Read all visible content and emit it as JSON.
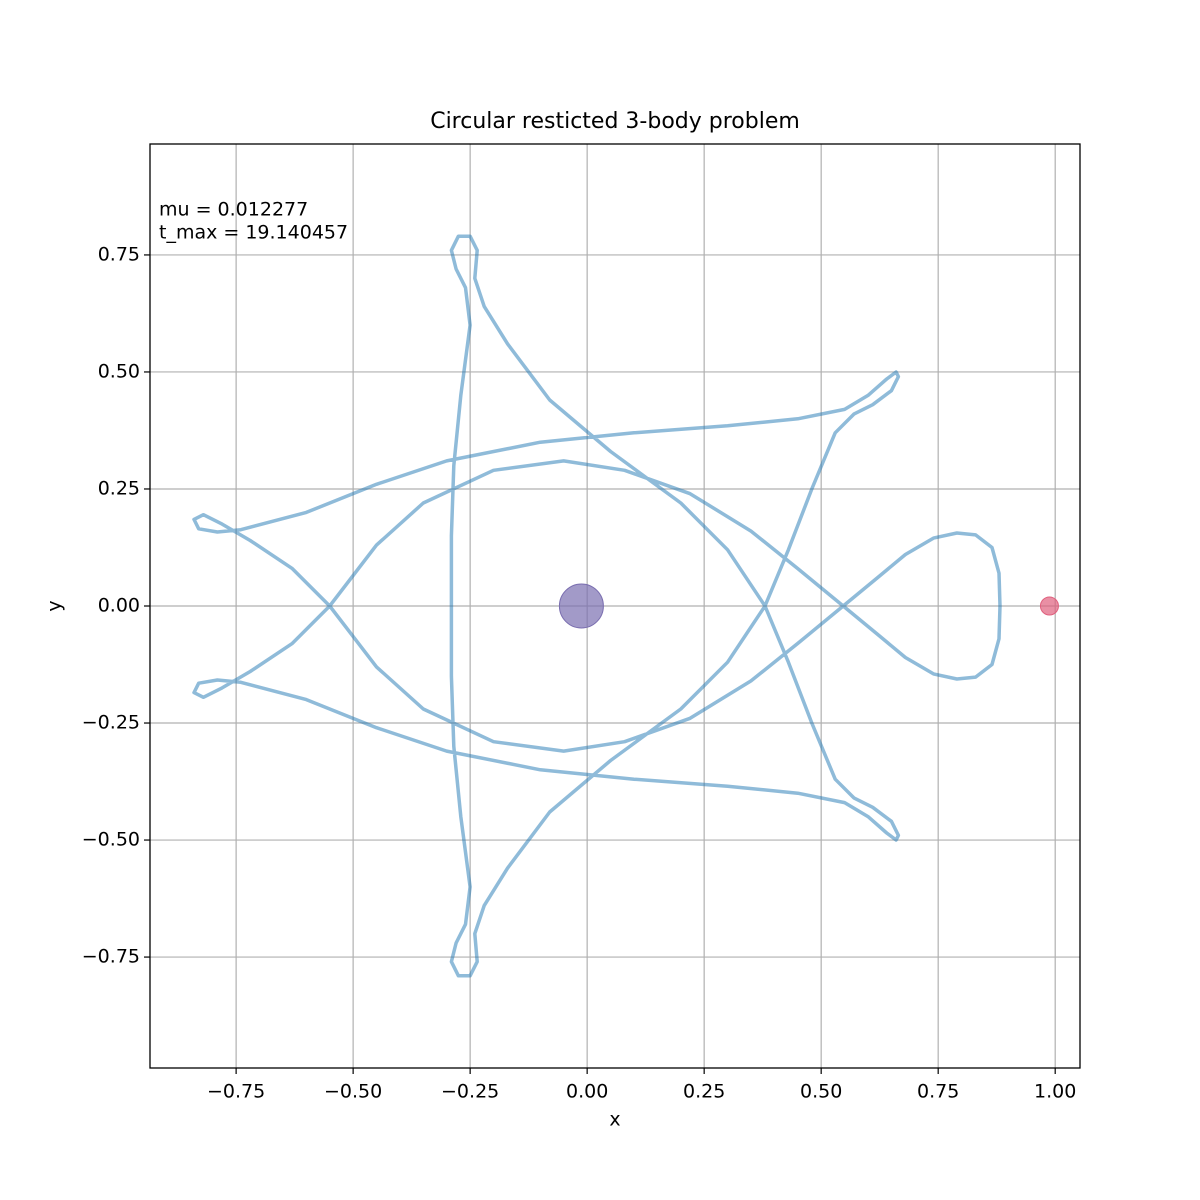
{
  "chart_data": {
    "type": "trajectory",
    "title": "Circular resticted 3-body problem",
    "x_label": "x",
    "y_label": "y",
    "annotations": [
      "mu = 0.012277",
      "t_max = 19.140457"
    ],
    "xlim": [
      -0.934,
      1.053
    ],
    "ylim": [
      -0.987,
      0.987
    ],
    "xticks": [
      {
        "value": -0.75,
        "label": "−0.75"
      },
      {
        "value": -0.5,
        "label": "−0.50"
      },
      {
        "value": -0.25,
        "label": "−0.25"
      },
      {
        "value": 0,
        "label": "0.00"
      },
      {
        "value": 0.25,
        "label": "0.25"
      },
      {
        "value": 0.5,
        "label": "0.50"
      },
      {
        "value": 0.75,
        "label": "0.75"
      },
      {
        "value": 1,
        "label": "1.00"
      }
    ],
    "yticks": [
      {
        "value": -0.75,
        "label": "−0.75"
      },
      {
        "value": -0.5,
        "label": "−0.50"
      },
      {
        "value": -0.25,
        "label": "−0.25"
      },
      {
        "value": 0,
        "label": "0.00"
      },
      {
        "value": 0.25,
        "label": "0.25"
      },
      {
        "value": 0.5,
        "label": "0.50"
      },
      {
        "value": 0.75,
        "label": "0.75"
      }
    ],
    "grid": true,
    "series": [
      {
        "color": "#1f77b4",
        "x": [
          0.882,
          0.88,
          0.865,
          0.83,
          0.79,
          0.74,
          0.68,
          0.62,
          0.547,
          0.45,
          0.35,
          0.22,
          0.08,
          -0.05,
          -0.2,
          -0.35,
          -0.45,
          -0.55,
          -0.63,
          -0.72,
          -0.78,
          -0.82,
          -0.84,
          -0.83,
          -0.79,
          -0.74,
          -0.6,
          -0.45,
          -0.3,
          -0.1,
          0.1,
          0.3,
          0.45,
          0.55,
          0.6,
          0.64,
          0.66,
          0.665,
          0.65,
          0.61,
          0.57,
          0.53,
          0.48,
          0.43,
          0.38,
          0.3,
          0.2,
          0.05,
          -0.08,
          -0.17,
          -0.22,
          -0.24,
          -0.235,
          -0.25,
          -0.275,
          -0.29,
          -0.28,
          -0.26,
          -0.25,
          -0.27,
          -0.285,
          -0.29,
          -0.29,
          -0.29,
          -0.285,
          -0.27,
          -0.25,
          -0.26,
          -0.28,
          -0.29,
          -0.275,
          -0.25,
          -0.235,
          -0.24,
          -0.22,
          -0.17,
          -0.08,
          0.05,
          0.2,
          0.3,
          0.38,
          0.43,
          0.48,
          0.53,
          0.57,
          0.61,
          0.65,
          0.665,
          0.66,
          0.64,
          0.6,
          0.55,
          0.45,
          0.3,
          0.1,
          -0.1,
          -0.3,
          -0.45,
          -0.6,
          -0.74,
          -0.79,
          -0.83,
          -0.84,
          -0.82,
          -0.78,
          -0.72,
          -0.63,
          -0.55,
          -0.45,
          -0.35,
          -0.2,
          -0.05,
          0.08,
          0.22,
          0.35,
          0.45,
          0.547,
          0.62,
          0.68,
          0.74,
          0.79,
          0.83,
          0.865,
          0.88,
          0.882
        ],
        "y": [
          0,
          0.07,
          0.125,
          0.152,
          0.156,
          0.145,
          0.11,
          0.06,
          0,
          -0.08,
          -0.16,
          -0.24,
          -0.29,
          -0.31,
          -0.29,
          -0.22,
          -0.13,
          0,
          0.08,
          0.14,
          0.175,
          0.195,
          0.185,
          0.165,
          0.158,
          0.163,
          0.2,
          0.26,
          0.31,
          0.35,
          0.37,
          0.385,
          0.4,
          0.42,
          0.45,
          0.485,
          0.5,
          0.49,
          0.46,
          0.43,
          0.41,
          0.37,
          0.25,
          0.12,
          0,
          -0.12,
          -0.22,
          -0.33,
          -0.44,
          -0.56,
          -0.64,
          -0.7,
          -0.76,
          -0.79,
          -0.79,
          -0.76,
          -0.72,
          -0.68,
          -0.6,
          -0.45,
          -0.3,
          -0.15,
          0,
          0.15,
          0.3,
          0.45,
          0.6,
          0.68,
          0.72,
          0.76,
          0.79,
          0.79,
          0.76,
          0.7,
          0.64,
          0.56,
          0.44,
          0.33,
          0.22,
          0.12,
          0,
          -0.12,
          -0.25,
          -0.37,
          -0.41,
          -0.43,
          -0.46,
          -0.49,
          -0.5,
          -0.485,
          -0.45,
          -0.42,
          -0.4,
          -0.385,
          -0.37,
          -0.35,
          -0.31,
          -0.26,
          -0.2,
          -0.163,
          -0.158,
          -0.165,
          -0.185,
          -0.195,
          -0.175,
          -0.14,
          -0.08,
          0,
          0.13,
          0.22,
          0.29,
          0.31,
          0.29,
          0.24,
          0.16,
          0.08,
          0,
          -0.06,
          -0.11,
          -0.145,
          -0.156,
          -0.152,
          -0.125,
          -0.07,
          0
        ]
      },
      {
        "type": "scatter",
        "x": [
          -0.012277,
          0.987723
        ],
        "y": [
          0,
          0
        ],
        "colors": [
          "#7b6fb0",
          "#e0607e"
        ]
      }
    ]
  }
}
